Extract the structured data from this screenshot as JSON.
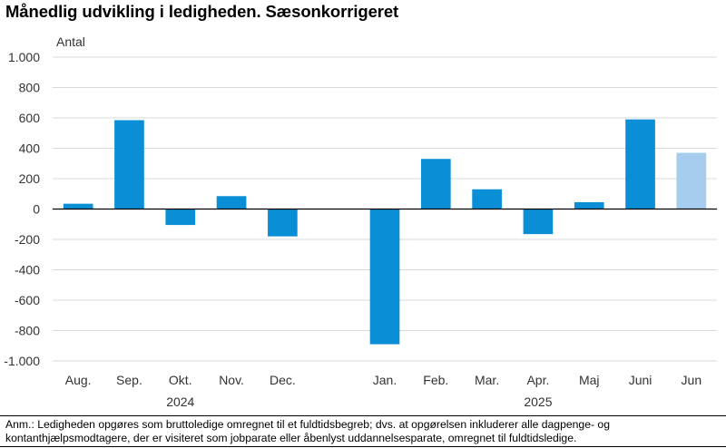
{
  "title": "Månedlig udvikling i ledigheden. Sæsonkorrigeret",
  "note": "Anm.: Ledigheden opgøres som bruttoledige omregnet til et fuldtidsbegreb; dvs. at opgørelsen inkluderer alle dagpenge- og kontanthjælpsmodtagere, der er visiteret som jobparate eller åbenlyst uddannelsesparate, omregnet til fuldtidsledige.",
  "colors": {
    "bar": "#0a8fd6",
    "bar_highlight": "#a6cdee",
    "grid": "#d9d9d9",
    "axis": "#000000"
  },
  "chart_data": {
    "type": "bar",
    "ylabel": "Antal",
    "ylim": [
      -1000,
      1000
    ],
    "yticks": [
      1000,
      800,
      600,
      400,
      200,
      0,
      -200,
      -400,
      -600,
      -800,
      -1000
    ],
    "ytick_labels": [
      "1.000",
      "800",
      "600",
      "400",
      "200",
      "0",
      "-200",
      "-400",
      "-600",
      "-800",
      "-1.000"
    ],
    "grid": true,
    "groups": [
      {
        "label": "2024",
        "categories": [
          "Aug.",
          "Sep.",
          "Okt.",
          "Nov.",
          "Dec."
        ],
        "values": [
          35,
          585,
          -105,
          85,
          -180
        ],
        "highlight": [
          false,
          false,
          false,
          false,
          false
        ]
      },
      {
        "label": "2025",
        "categories": [
          "Jan.",
          "Feb.",
          "Mar.",
          "Apr.",
          "Maj",
          "Juni",
          "Jun"
        ],
        "values": [
          -890,
          330,
          130,
          -165,
          45,
          590,
          370
        ],
        "highlight": [
          false,
          false,
          false,
          false,
          false,
          false,
          true
        ]
      }
    ]
  }
}
